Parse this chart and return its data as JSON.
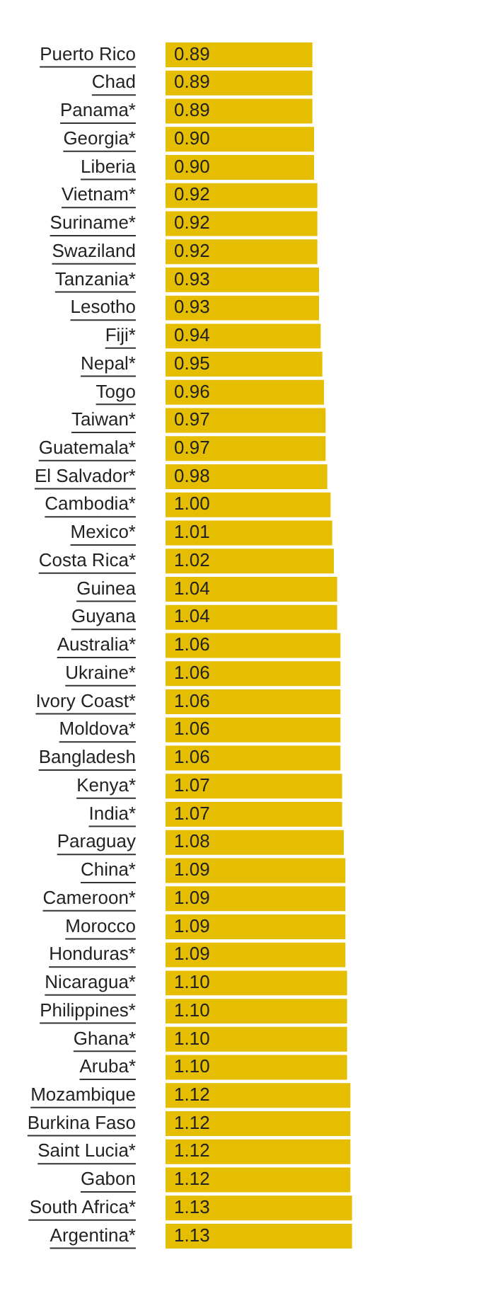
{
  "chart_data": {
    "type": "bar",
    "orientation": "horizontal",
    "data_labels": true,
    "grid": false,
    "legend": false,
    "value_labels": [
      "0.89",
      "0.89",
      "0.89",
      "0.90",
      "0.90",
      "0.92",
      "0.92",
      "0.92",
      "0.93",
      "0.93",
      "0.94",
      "0.95",
      "0.96",
      "0.97",
      "0.97",
      "0.98",
      "1.00",
      "1.01",
      "1.02",
      "1.04",
      "1.04",
      "1.06",
      "1.06",
      "1.06",
      "1.06",
      "1.06",
      "1.07",
      "1.07",
      "1.08",
      "1.09",
      "1.09",
      "1.09",
      "1.09",
      "1.10",
      "1.10",
      "1.10",
      "1.10",
      "1.12",
      "1.12",
      "1.12",
      "1.12",
      "1.13",
      "1.13"
    ],
    "tick_labels": "y",
    "categories": [
      "Puerto Rico",
      "Chad",
      "Panama*",
      "Georgia*",
      "Liberia",
      "Vietnam*",
      "Suriname*",
      "Swaziland",
      "Tanzania*",
      "Lesotho",
      "Fiji*",
      "Nepal*",
      "Togo",
      "Taiwan*",
      "Guatemala*",
      "El Salvador*",
      "Cambodia*",
      "Mexico*",
      "Costa Rica*",
      "Guinea",
      "Guyana",
      "Australia*",
      "Ukraine*",
      "Ivory Coast*",
      "Moldova*",
      "Bangladesh",
      "Kenya*",
      "India*",
      "Paraguay",
      "China*",
      "Cameroon*",
      "Morocco",
      "Honduras*",
      "Nicaragua*",
      "Philippines*",
      "Ghana*",
      "Aruba*",
      "Mozambique",
      "Burkina Faso",
      "Saint Lucia*",
      "Gabon",
      "South Africa*",
      "Argentina*"
    ],
    "color": "#e5be01",
    "values": [
      0.89,
      0.89,
      0.89,
      0.9,
      0.9,
      0.92,
      0.92,
      0.92,
      0.93,
      0.93,
      0.94,
      0.95,
      0.96,
      0.97,
      0.97,
      0.98,
      1.0,
      1.01,
      1.02,
      1.04,
      1.04,
      1.06,
      1.06,
      1.06,
      1.06,
      1.06,
      1.07,
      1.07,
      1.08,
      1.09,
      1.09,
      1.09,
      1.09,
      1.1,
      1.1,
      1.1,
      1.1,
      1.12,
      1.12,
      1.12,
      1.12,
      1.13,
      1.13
    ]
  }
}
